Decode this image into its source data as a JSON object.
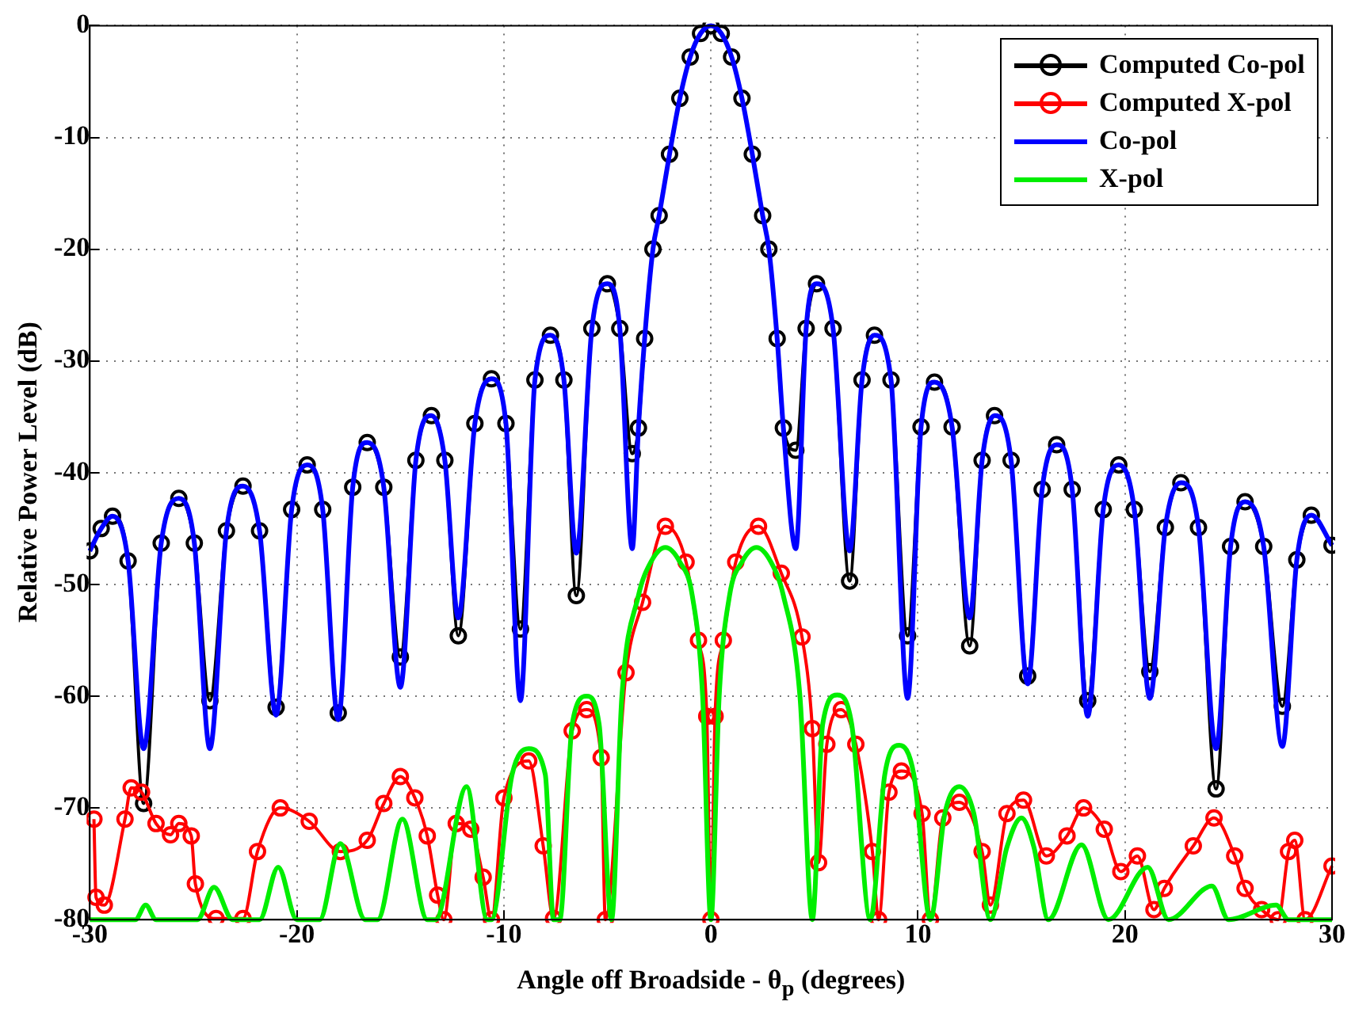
{
  "chart_data": {
    "type": "line",
    "xlabel": "Angle off Broadside - θ$_{p}$ (degrees)",
    "ylabel": "Relative Power Level (dB)",
    "xlim": [
      -30,
      30
    ],
    "xticks": [
      -30,
      -20,
      -10,
      0,
      10,
      20,
      30
    ],
    "ylim": [
      -80,
      0
    ],
    "yticks": [
      -80,
      -70,
      -60,
      -50,
      -40,
      -30,
      -20,
      -10,
      0
    ],
    "grid": true,
    "legend": "top right",
    "line_style": "solid",
    "series": [
      {
        "name": "Computed Co-pol",
        "color": "#000000",
        "marker": "circle",
        "x": [
          -30,
          -29.45,
          -28.9,
          -28.15,
          -27.4,
          -26.55,
          -25.7,
          -24.95,
          -24.2,
          -23.4,
          -22.6,
          -21.8,
          -21,
          -20.25,
          -19.5,
          -18.75,
          -18,
          -17.3,
          -16.6,
          -15.8,
          -15,
          -14.25,
          -13.5,
          -12.85,
          -12.2,
          -11.4,
          -10.6,
          -9.9,
          -9.2,
          -8.5,
          -7.75,
          -7.1,
          -6.5,
          -5.75,
          -5,
          -4.4,
          -3.8,
          -3.5,
          -3.2,
          -2.8,
          -2.5,
          -2,
          -1.5,
          -1,
          -0.5,
          0,
          0.5,
          1,
          1.5,
          2,
          2.5,
          2.8,
          3.2,
          3.5,
          4.1,
          4.6,
          5.1,
          5.9,
          6.7,
          7.3,
          7.9,
          8.7,
          9.5,
          10.15,
          10.8,
          11.65,
          12.5,
          13.1,
          13.7,
          14.5,
          15.3,
          16,
          16.7,
          17.45,
          18.2,
          18.95,
          19.7,
          20.45,
          21.2,
          21.95,
          22.7,
          23.55,
          24.4,
          25.1,
          25.8,
          26.7,
          27.6,
          28.3,
          29,
          30
        ],
        "values": [
          -47,
          -45,
          -43.9,
          -47.9,
          -69.6,
          -46.3,
          -42.3,
          -46.3,
          -60.4,
          -45.2,
          -41.2,
          -45.2,
          -61,
          -43.3,
          -39.3,
          -43.3,
          -61.5,
          -41.3,
          -37.3,
          -41.3,
          -56.5,
          -38.9,
          -34.9,
          -38.9,
          -54.6,
          -35.6,
          -31.6,
          -35.6,
          -54,
          -31.7,
          -27.7,
          -31.7,
          -51,
          -27.1,
          -23.1,
          -27.1,
          -38.3,
          -36,
          -28,
          -20,
          -17,
          -11.5,
          -6.5,
          -2.8,
          -0.7,
          0,
          -0.7,
          -2.8,
          -6.5,
          -11.5,
          -17,
          -20,
          -28,
          -36,
          -38,
          -27.1,
          -23.1,
          -27.1,
          -49.7,
          -31.7,
          -27.7,
          -31.7,
          -54.6,
          -35.9,
          -31.9,
          -35.9,
          -55.5,
          -38.9,
          -34.9,
          -38.9,
          -58.2,
          -41.5,
          -37.5,
          -41.5,
          -60.4,
          -43.3,
          -39.3,
          -43.3,
          -57.8,
          -44.9,
          -40.9,
          -44.9,
          -68.3,
          -46.6,
          -42.6,
          -46.6,
          -60.9,
          -47.8,
          -43.8,
          -46.5
        ]
      },
      {
        "name": "Computed X-pol",
        "color": "#ff0000",
        "marker": "circle",
        "x": [
          -29.8,
          -29.7,
          -29.3,
          -28.3,
          -28,
          -27.5,
          -26.8,
          -26.1,
          -25.7,
          -25.1,
          -24.9,
          -23.9,
          -22.6,
          -21.9,
          -20.8,
          -19.4,
          -17.9,
          -16.6,
          -15.8,
          -15,
          -14.3,
          -13.7,
          -13.2,
          -12.9,
          -12.3,
          -11.6,
          -11,
          -10.6,
          -10,
          -8.8,
          -8.1,
          -7.6,
          -6.7,
          -6,
          -5.3,
          -5.1,
          -4.1,
          -3.3,
          -2.2,
          -1.2,
          -0.6,
          -0.2,
          0,
          0.2,
          0.6,
          1.2,
          2.3,
          3.4,
          4.4,
          4.9,
          5.2,
          5.6,
          6.3,
          7,
          7.8,
          8.1,
          8.6,
          9.2,
          10.2,
          10.6,
          11.2,
          12,
          13.1,
          13.5,
          14.3,
          15.1,
          16.2,
          17.2,
          18,
          19,
          19.8,
          20.6,
          21.4,
          21.9,
          23.3,
          24.3,
          25.3,
          25.8,
          26.6,
          27.4,
          27.9,
          28.2,
          28.7,
          30
        ],
        "values": [
          -71,
          -78,
          -78.7,
          -71,
          -68.2,
          -68.6,
          -71.4,
          -72.4,
          -71.4,
          -72.5,
          -76.8,
          -79.9,
          -79.9,
          -73.9,
          -70,
          -71.2,
          -73.9,
          -72.9,
          -69.6,
          -67.2,
          -69.1,
          -72.5,
          -77.8,
          -80,
          -71.4,
          -71.9,
          -76.2,
          -80,
          -69.1,
          -65.8,
          -73.4,
          -79.9,
          -63.1,
          -61.2,
          -65.5,
          -80,
          -57.9,
          -51.6,
          -44.8,
          -48,
          -55,
          -61.8,
          -80,
          -61.8,
          -55,
          -48,
          -44.8,
          -49,
          -54.7,
          -62.9,
          -74.9,
          -64.3,
          -61.2,
          -64.3,
          -73.9,
          -80,
          -68.6,
          -66.7,
          -70.5,
          -80,
          -70.9,
          -69.5,
          -73.9,
          -78.7,
          -70.5,
          -69.3,
          -74.3,
          -72.5,
          -70,
          -71.9,
          -75.7,
          -74.3,
          -79.1,
          -77.2,
          -73.4,
          -70.9,
          -74.3,
          -77.2,
          -79.1,
          -80,
          -73.9,
          -72.9,
          -80,
          -75.2
        ]
      },
      {
        "name": "Co-pol",
        "color": "#0000ff",
        "marker": "none",
        "x": [
          -30,
          -29.45,
          -28.9,
          -28.15,
          -27.4,
          -26.55,
          -25.7,
          -24.95,
          -24.2,
          -23.4,
          -22.6,
          -21.8,
          -21,
          -20.25,
          -19.5,
          -18.75,
          -18,
          -17.3,
          -16.6,
          -15.8,
          -15,
          -14.25,
          -13.5,
          -12.85,
          -12.2,
          -11.4,
          -10.6,
          -9.9,
          -9.2,
          -8.5,
          -7.75,
          -7.1,
          -6.5,
          -5.75,
          -5,
          -4.4,
          -3.8,
          -3.5,
          -3.2,
          -2.8,
          -2.5,
          -2,
          -1.5,
          -1,
          -0.5,
          0,
          0.5,
          1,
          1.5,
          2,
          2.5,
          2.8,
          3.2,
          3.5,
          4.1,
          4.6,
          5.1,
          5.9,
          6.7,
          7.3,
          7.9,
          8.7,
          9.5,
          10.15,
          10.8,
          11.65,
          12.5,
          13.1,
          13.7,
          14.5,
          15.3,
          16,
          16.7,
          17.45,
          18.2,
          18.95,
          19.7,
          20.45,
          21.2,
          21.95,
          22.7,
          23.55,
          24.4,
          25.1,
          25.8,
          26.7,
          27.6,
          28.3,
          29,
          30
        ],
        "values": [
          -47,
          -45,
          -43.9,
          -47.9,
          -64.7,
          -46.3,
          -42.3,
          -46.3,
          -64.7,
          -45.2,
          -41.2,
          -45.2,
          -61.7,
          -43.3,
          -39.3,
          -43.3,
          -62.1,
          -41.3,
          -37.3,
          -41.3,
          -59.2,
          -38.9,
          -34.9,
          -38.9,
          -53,
          -35.6,
          -31.6,
          -35.6,
          -60.4,
          -31.7,
          -27.7,
          -31.7,
          -47.2,
          -27.1,
          -23.1,
          -27.1,
          -46.8,
          -36,
          -28,
          -20,
          -17,
          -11.5,
          -6.5,
          -2.8,
          -0.7,
          0,
          -0.7,
          -2.8,
          -6.5,
          -11.5,
          -17,
          -20,
          -28,
          -36,
          -46.8,
          -27.1,
          -23.1,
          -27.1,
          -47,
          -31.7,
          -27.7,
          -31.7,
          -60.2,
          -35.9,
          -31.9,
          -35.9,
          -53,
          -38.9,
          -34.9,
          -38.9,
          -58.9,
          -41.5,
          -37.5,
          -41.5,
          -61.8,
          -43.3,
          -39.3,
          -43.3,
          -60.2,
          -44.9,
          -40.9,
          -44.9,
          -64.7,
          -46.6,
          -42.6,
          -46.6,
          -64.5,
          -47.8,
          -43.8,
          -46.5
        ]
      },
      {
        "name": "X-pol",
        "color": "#00ee00",
        "marker": "none",
        "x": [
          -30,
          -27.8,
          -27.3,
          -26.8,
          -24.8,
          -24,
          -23.1,
          -21.8,
          -20.9,
          -20,
          -18.9,
          -17.9,
          -16.7,
          -16.1,
          -14.9,
          -13.7,
          -13.3,
          -11.8,
          -10.8,
          -10.6,
          -9.6,
          -8.8,
          -8,
          -7.6,
          -7.3,
          -6.7,
          -6,
          -5.4,
          -4.8,
          -4.3,
          -3.5,
          -2.9,
          -2.2,
          -1.5,
          -0.9,
          -0.4,
          0,
          0.4,
          0.9,
          1.5,
          2.2,
          2.9,
          3.5,
          4.3,
          4.9,
          5.4,
          6.1,
          6.8,
          7.7,
          8.4,
          9.1,
          9.8,
          10.6,
          11.3,
          12,
          12.7,
          13.5,
          14.3,
          15,
          15.6,
          16.3,
          17.9,
          19.2,
          21.1,
          22.1,
          24.2,
          25,
          27.3,
          27.9,
          30
        ],
        "values": [
          -80,
          -80,
          -78.7,
          -80,
          -80,
          -77.1,
          -80,
          -80,
          -75.3,
          -80,
          -80,
          -73.2,
          -80,
          -80,
          -71,
          -80,
          -80,
          -68.1,
          -80,
          -80,
          -67,
          -64.7,
          -67,
          -80,
          -80,
          -62.5,
          -60,
          -62.5,
          -80,
          -60,
          -51,
          -48,
          -46.7,
          -48,
          -51,
          -60,
          -80,
          -60,
          -51,
          -48,
          -46.7,
          -48,
          -51,
          -60,
          -80,
          -62.5,
          -59.9,
          -62.5,
          -80,
          -67,
          -64.4,
          -67,
          -80,
          -70.5,
          -68.1,
          -70.5,
          -80,
          -73.5,
          -70.9,
          -73.5,
          -80,
          -73.3,
          -80,
          -75.3,
          -80,
          -77,
          -80,
          -78.7,
          -80,
          -80
        ]
      }
    ]
  }
}
